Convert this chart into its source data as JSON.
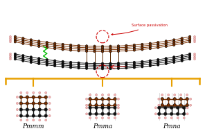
{
  "bg_color": "#ffffff",
  "label_pmmm": "Pmmm",
  "label_pmma": "Pmma",
  "label_pmna": "Pmna",
  "label_surface": "Surface passivation",
  "atom_color_brown": "#7B3000",
  "atom_color_dark": "#111111",
  "bond_color_brown": "#7B3000",
  "bond_color_dark": "#111111",
  "arrow_color_red": "#cc0000",
  "bracket_color": "#e8a000",
  "green_wave_color": "#00bb00",
  "h_atom_color": "#f5b8b8",
  "h_edge_color": "#cc8888",
  "interlayer_bond_color": "#5a2800",
  "label_fontsize": 6.5,
  "guide_line_color": "#bbbbbb"
}
